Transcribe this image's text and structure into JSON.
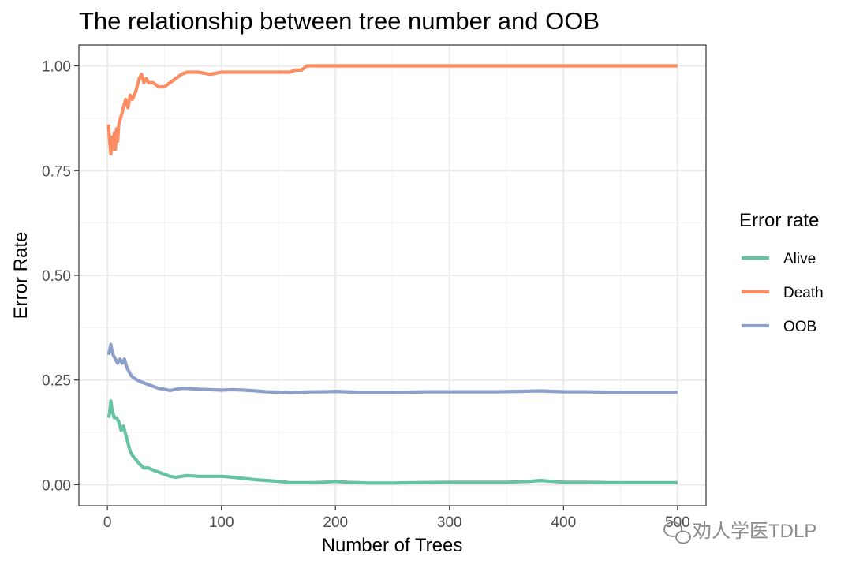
{
  "chart_data": {
    "type": "line",
    "title": "The relationship between tree number and OOB",
    "xlabel": "Number of Trees",
    "ylabel": "Error Rate",
    "xlim": [
      -25,
      525
    ],
    "ylim": [
      -0.05,
      1.05
    ],
    "x_ticks": [
      0,
      100,
      200,
      300,
      400,
      500
    ],
    "x_tick_labels": [
      "0",
      "100",
      "200",
      "300",
      "400",
      "500"
    ],
    "y_ticks": [
      0.0,
      0.25,
      0.5,
      0.75,
      1.0
    ],
    "y_tick_labels": [
      "0.00",
      "0.25",
      "0.50",
      "0.75",
      "1.00"
    ],
    "grid": true,
    "legend": {
      "title": "Error rate",
      "placement": "right"
    },
    "series": [
      {
        "name": "Alive",
        "color": "#66c2a5",
        "points": [
          [
            1,
            0.16
          ],
          [
            2,
            0.17
          ],
          [
            3,
            0.2
          ],
          [
            4,
            0.18
          ],
          [
            5,
            0.17
          ],
          [
            6,
            0.16
          ],
          [
            8,
            0.16
          ],
          [
            10,
            0.15
          ],
          [
            12,
            0.13
          ],
          [
            14,
            0.14
          ],
          [
            16,
            0.12
          ],
          [
            18,
            0.1
          ],
          [
            20,
            0.08
          ],
          [
            22,
            0.07
          ],
          [
            25,
            0.06
          ],
          [
            28,
            0.05
          ],
          [
            32,
            0.04
          ],
          [
            36,
            0.04
          ],
          [
            40,
            0.035
          ],
          [
            45,
            0.03
          ],
          [
            50,
            0.025
          ],
          [
            55,
            0.02
          ],
          [
            60,
            0.018
          ],
          [
            65,
            0.02
          ],
          [
            70,
            0.022
          ],
          [
            80,
            0.02
          ],
          [
            90,
            0.02
          ],
          [
            100,
            0.02
          ],
          [
            110,
            0.018
          ],
          [
            120,
            0.015
          ],
          [
            130,
            0.012
          ],
          [
            140,
            0.01
          ],
          [
            150,
            0.008
          ],
          [
            160,
            0.005
          ],
          [
            170,
            0.005
          ],
          [
            180,
            0.005
          ],
          [
            190,
            0.006
          ],
          [
            200,
            0.008
          ],
          [
            210,
            0.006
          ],
          [
            220,
            0.005
          ],
          [
            230,
            0.004
          ],
          [
            250,
            0.004
          ],
          [
            270,
            0.005
          ],
          [
            300,
            0.006
          ],
          [
            330,
            0.006
          ],
          [
            350,
            0.006
          ],
          [
            370,
            0.008
          ],
          [
            380,
            0.01
          ],
          [
            390,
            0.008
          ],
          [
            400,
            0.006
          ],
          [
            420,
            0.006
          ],
          [
            440,
            0.005
          ],
          [
            460,
            0.005
          ],
          [
            480,
            0.005
          ],
          [
            500,
            0.005
          ]
        ]
      },
      {
        "name": "Death",
        "color": "#fc8d62",
        "points": [
          [
            1,
            0.86
          ],
          [
            2,
            0.82
          ],
          [
            3,
            0.79
          ],
          [
            4,
            0.83
          ],
          [
            5,
            0.8
          ],
          [
            6,
            0.84
          ],
          [
            7,
            0.8
          ],
          [
            8,
            0.85
          ],
          [
            9,
            0.82
          ],
          [
            10,
            0.86
          ],
          [
            12,
            0.88
          ],
          [
            14,
            0.9
          ],
          [
            16,
            0.92
          ],
          [
            18,
            0.9
          ],
          [
            20,
            0.93
          ],
          [
            22,
            0.92
          ],
          [
            25,
            0.94
          ],
          [
            28,
            0.97
          ],
          [
            30,
            0.98
          ],
          [
            32,
            0.96
          ],
          [
            34,
            0.97
          ],
          [
            36,
            0.96
          ],
          [
            40,
            0.96
          ],
          [
            45,
            0.95
          ],
          [
            50,
            0.95
          ],
          [
            55,
            0.96
          ],
          [
            60,
            0.97
          ],
          [
            65,
            0.98
          ],
          [
            70,
            0.985
          ],
          [
            80,
            0.985
          ],
          [
            90,
            0.98
          ],
          [
            100,
            0.985
          ],
          [
            110,
            0.985
          ],
          [
            120,
            0.985
          ],
          [
            130,
            0.985
          ],
          [
            140,
            0.985
          ],
          [
            150,
            0.985
          ],
          [
            160,
            0.985
          ],
          [
            165,
            0.99
          ],
          [
            170,
            0.99
          ],
          [
            175,
            1.0
          ],
          [
            200,
            1.0
          ],
          [
            300,
            1.0
          ],
          [
            400,
            1.0
          ],
          [
            500,
            1.0
          ]
        ]
      },
      {
        "name": "OOB",
        "color": "#8da0cb",
        "points": [
          [
            1,
            0.31
          ],
          [
            2,
            0.32
          ],
          [
            3,
            0.335
          ],
          [
            4,
            0.32
          ],
          [
            5,
            0.31
          ],
          [
            7,
            0.3
          ],
          [
            9,
            0.29
          ],
          [
            11,
            0.3
          ],
          [
            13,
            0.29
          ],
          [
            15,
            0.3
          ],
          [
            17,
            0.28
          ],
          [
            19,
            0.27
          ],
          [
            21,
            0.26
          ],
          [
            23,
            0.255
          ],
          [
            26,
            0.25
          ],
          [
            30,
            0.245
          ],
          [
            35,
            0.24
          ],
          [
            40,
            0.235
          ],
          [
            45,
            0.23
          ],
          [
            50,
            0.228
          ],
          [
            55,
            0.225
          ],
          [
            60,
            0.228
          ],
          [
            65,
            0.23
          ],
          [
            70,
            0.23
          ],
          [
            80,
            0.228
          ],
          [
            90,
            0.227
          ],
          [
            100,
            0.226
          ],
          [
            110,
            0.227
          ],
          [
            120,
            0.226
          ],
          [
            130,
            0.224
          ],
          [
            140,
            0.222
          ],
          [
            150,
            0.221
          ],
          [
            160,
            0.22
          ],
          [
            170,
            0.221
          ],
          [
            180,
            0.222
          ],
          [
            190,
            0.222
          ],
          [
            200,
            0.223
          ],
          [
            210,
            0.222
          ],
          [
            220,
            0.221
          ],
          [
            240,
            0.221
          ],
          [
            260,
            0.221
          ],
          [
            280,
            0.222
          ],
          [
            300,
            0.222
          ],
          [
            320,
            0.222
          ],
          [
            340,
            0.222
          ],
          [
            360,
            0.223
          ],
          [
            380,
            0.224
          ],
          [
            400,
            0.222
          ],
          [
            420,
            0.222
          ],
          [
            440,
            0.221
          ],
          [
            460,
            0.221
          ],
          [
            480,
            0.221
          ],
          [
            500,
            0.221
          ]
        ]
      }
    ]
  },
  "watermark": "劝人学医TDLP"
}
